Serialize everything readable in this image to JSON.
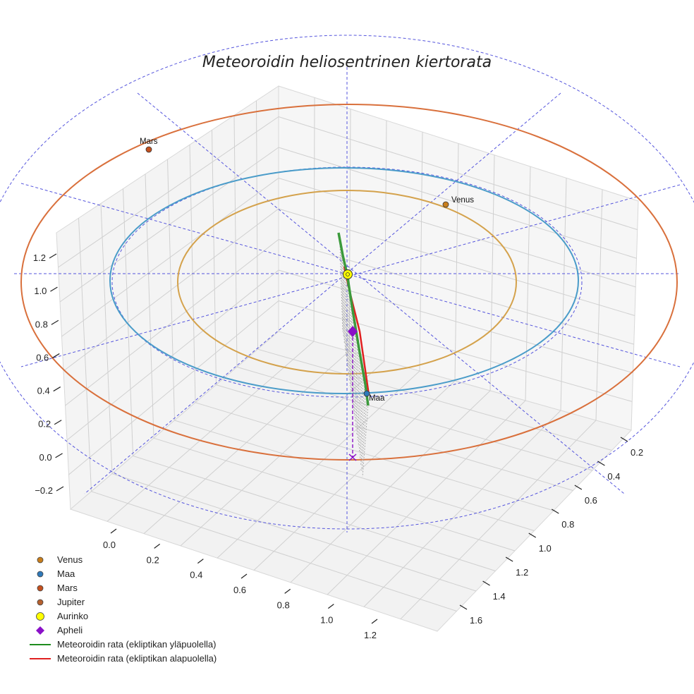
{
  "chart_data": {
    "type": "3d-line",
    "title": "Meteoroidin heliosentrinen kiertorata",
    "z_ticks": [
      "−0.2",
      "0.0",
      "0.2",
      "0.4",
      "0.6",
      "0.8",
      "1.0",
      "1.2"
    ],
    "x_ticks": [
      "0.0",
      "0.2",
      "0.4",
      "0.6",
      "0.8",
      "1.0",
      "1.2"
    ],
    "y_ticks": [
      "0.2",
      "0.4",
      "0.6",
      "0.8",
      "1.0",
      "1.2",
      "1.4",
      "1.6"
    ],
    "planets": [
      {
        "name": "Venus",
        "label": "Venus",
        "semi_major_axis_au": 0.72,
        "color": "#d4a24c"
      },
      {
        "name": "Maa",
        "label": "Maa",
        "semi_major_axis_au": 1.0,
        "color": "#4a9cc9"
      },
      {
        "name": "Mars",
        "label": "Mars",
        "semi_major_axis_au": 1.52,
        "color": "#d9703c"
      }
    ],
    "legend": [
      {
        "label": "Venus",
        "marker": "circle",
        "color": "#c97e1c"
      },
      {
        "label": "Maa",
        "marker": "circle",
        "color": "#2f79b9"
      },
      {
        "label": "Mars",
        "marker": "circle",
        "color": "#c4501e"
      },
      {
        "label": "Jupiter",
        "marker": "circle",
        "color": "#b5602e"
      },
      {
        "label": "Aurinko",
        "marker": "circle",
        "color": "#ffff00"
      },
      {
        "label": "Apheli",
        "marker": "diamond",
        "color": "#8a10c8"
      },
      {
        "label": "Meteoroidin rata (ekliptikan yläpuolella)",
        "marker": "line",
        "color": "#1e8c1e"
      },
      {
        "label": "Meteoroidin rata (ekliptikan alapuolella)",
        "marker": "line",
        "color": "#e02020"
      }
    ]
  }
}
